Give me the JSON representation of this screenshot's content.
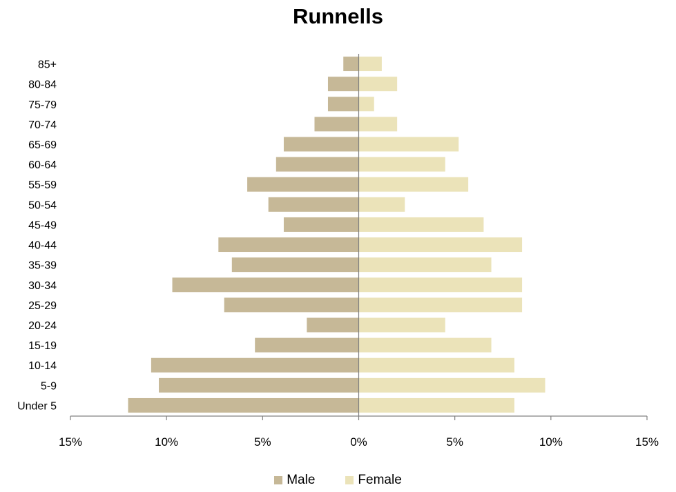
{
  "chart_data": {
    "type": "bar",
    "orientation": "horizontal-population-pyramid",
    "title": "Runnells",
    "categories": [
      "85+",
      "80-84",
      "75-79",
      "70-74",
      "65-69",
      "60-64",
      "55-59",
      "50-54",
      "45-49",
      "40-44",
      "35-39",
      "30-34",
      "25-29",
      "20-24",
      "15-19",
      "10-14",
      "5-9",
      "Under 5"
    ],
    "series": [
      {
        "name": "Male",
        "color": "#c6b897",
        "values": [
          0.8,
          1.6,
          1.6,
          2.3,
          3.9,
          4.3,
          5.8,
          4.7,
          3.9,
          7.3,
          6.6,
          9.7,
          7.0,
          2.7,
          5.4,
          10.8,
          10.4,
          12.0
        ]
      },
      {
        "name": "Female",
        "color": "#ebe3b9",
        "values": [
          1.2,
          2.0,
          0.8,
          2.0,
          5.2,
          4.5,
          5.7,
          2.4,
          6.5,
          8.5,
          6.9,
          8.5,
          8.5,
          4.5,
          6.9,
          8.1,
          9.7,
          8.1
        ]
      }
    ],
    "xlim": [
      -15,
      15
    ],
    "xticks": [
      -15,
      -10,
      -5,
      0,
      5,
      10,
      15
    ],
    "xtick_labels": [
      "15%",
      "10%",
      "5%",
      "0%",
      "5%",
      "10%",
      "15%"
    ],
    "xlabel": "",
    "ylabel": "",
    "grid": false,
    "legend_position": "bottom"
  }
}
